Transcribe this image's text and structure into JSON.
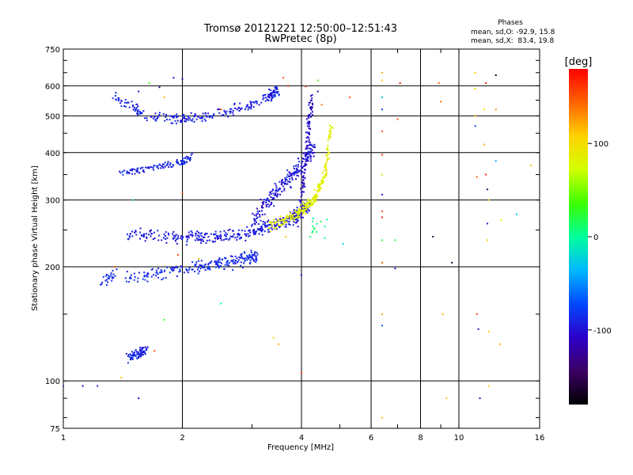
{
  "chart_data": {
    "type": "scatter",
    "title": "Tromsø 20121221 12:50:00–12:51:43",
    "subtitle": "RwPretec (8p)",
    "xlabel": "Frequency [MHz]",
    "ylabel": "Stationary phase Virtual Height [km]",
    "x_scale": "log",
    "y_scale": "log",
    "xlim": [
      1,
      16
    ],
    "ylim": [
      75,
      750
    ],
    "x_ticks": [
      1,
      2,
      4,
      6,
      8,
      10,
      16
    ],
    "y_ticks": [
      75,
      100,
      200,
      300,
      400,
      500,
      600,
      750
    ],
    "grid": true,
    "info": {
      "title": "Phases",
      "line1": "mean, sd,O: -92.9, 15.8",
      "line2": "mean, sd,X:  83.4, 19.8"
    },
    "colorbar": {
      "label": "[deg]",
      "min": -180,
      "max": 180,
      "ticks": [
        100,
        0,
        -100
      ],
      "colors": [
        "#000000",
        "#3c0064",
        "#2c00c8",
        "#0048ff",
        "#00b8ff",
        "#00ff9c",
        "#3cff00",
        "#d2ff00",
        "#ffd200",
        "#ff6400",
        "#ff0000"
      ]
    },
    "traces": [
      {
        "xs": [
          1.45,
          1.62
        ],
        "ys": [
          115,
          120
        ],
        "phase": -92,
        "jitter": 0.045,
        "n": 70
      },
      {
        "xs": [
          1.25,
          1.35
        ],
        "ys": [
          183,
          192
        ],
        "phase": -85,
        "jitter": 0.05,
        "n": 25
      },
      {
        "xs": [
          1.45,
          2.0,
          2.6,
          3.1
        ],
        "ys": [
          188,
          196,
          205,
          215
        ],
        "phase": -88,
        "jitter": 0.06,
        "n": 220
      },
      {
        "xs": [
          1.45,
          2.0,
          2.8,
          3.3,
          3.8,
          4.2
        ],
        "ys": [
          245,
          238,
          243,
          255,
          270,
          290
        ],
        "phase": -95,
        "jitter": 0.055,
        "n": 380
      },
      {
        "xs": [
          3.0,
          3.5,
          4.0,
          4.3
        ],
        "ys": [
          265,
          320,
          370,
          410
        ],
        "phase": -98,
        "jitter": 0.08,
        "n": 220
      },
      {
        "xs": [
          1.4,
          1.7,
          2.0,
          2.1
        ],
        "ys": [
          355,
          365,
          378,
          388
        ],
        "phase": -90,
        "jitter": 0.035,
        "n": 110
      },
      {
        "xs": [
          1.35,
          1.6,
          2.0,
          2.4,
          2.9,
          3.3,
          3.5
        ],
        "ys": [
          560,
          500,
          488,
          502,
          530,
          560,
          585
        ],
        "phase": -92,
        "jitter": 0.045,
        "n": 260
      },
      {
        "xs": [
          3.9,
          4.1,
          4.25
        ],
        "ys": [
          260,
          370,
          560
        ],
        "phase": -105,
        "jitter": 0.03,
        "n": 110
      },
      {
        "xs": [
          3.3,
          3.9,
          4.3,
          4.6,
          4.75
        ],
        "ys": [
          255,
          275,
          300,
          350,
          470
        ],
        "phase": 85,
        "jitter": 0.045,
        "n": 240
      },
      {
        "xs": [
          4.2,
          4.7
        ],
        "ys": [
          250,
          250
        ],
        "phase": 10,
        "jitter": 0.1,
        "n": 15
      }
    ],
    "scatter_points": [
      [
        6.4,
        650,
        120
      ],
      [
        6.4,
        620,
        110
      ],
      [
        6.4,
        560,
        -20
      ],
      [
        6.4,
        520,
        -70
      ],
      [
        6.4,
        455,
        150
      ],
      [
        6.4,
        395,
        160
      ],
      [
        6.4,
        350,
        90
      ],
      [
        6.4,
        310,
        -90
      ],
      [
        6.4,
        280,
        150
      ],
      [
        6.4,
        270,
        170
      ],
      [
        6.4,
        235,
        20
      ],
      [
        6.4,
        205,
        140
      ],
      [
        6.4,
        150,
        130
      ],
      [
        6.4,
        140,
        -60
      ],
      [
        6.4,
        80,
        110
      ],
      [
        7.1,
        610,
        170
      ],
      [
        7.0,
        490,
        150
      ],
      [
        6.9,
        235,
        20
      ],
      [
        6.9,
        198,
        -110
      ],
      [
        8.6,
        240,
        -160
      ],
      [
        8.9,
        610,
        150
      ],
      [
        9.0,
        545,
        140
      ],
      [
        9.1,
        150,
        120
      ],
      [
        9.3,
        90,
        110
      ],
      [
        9.6,
        205,
        -160
      ],
      [
        11.0,
        650,
        110
      ],
      [
        11.0,
        590,
        100
      ],
      [
        11.0,
        500,
        120
      ],
      [
        11.0,
        470,
        -80
      ],
      [
        11.1,
        345,
        150
      ],
      [
        11.1,
        150,
        160
      ],
      [
        11.2,
        137,
        -120
      ],
      [
        11.3,
        90,
        -110
      ],
      [
        11.7,
        610,
        170
      ],
      [
        11.6,
        520,
        100
      ],
      [
        11.6,
        420,
        120
      ],
      [
        11.7,
        350,
        170
      ],
      [
        11.8,
        320,
        -140
      ],
      [
        11.9,
        300,
        110
      ],
      [
        11.8,
        260,
        -100
      ],
      [
        11.8,
        235,
        110
      ],
      [
        11.9,
        135,
        110
      ],
      [
        11.9,
        97,
        110
      ],
      [
        12.4,
        640,
        -170
      ],
      [
        12.4,
        520,
        130
      ],
      [
        12.4,
        380,
        -40
      ],
      [
        12.8,
        265,
        80
      ],
      [
        12.7,
        125,
        120
      ],
      [
        14.0,
        275,
        -20
      ],
      [
        15.2,
        370,
        110
      ],
      [
        1.0,
        97,
        -110
      ],
      [
        1.12,
        97,
        -100
      ],
      [
        1.22,
        97,
        -90
      ],
      [
        1.4,
        102,
        110
      ],
      [
        1.55,
        90,
        -110
      ],
      [
        1.7,
        120,
        150
      ],
      [
        1.75,
        595,
        -130
      ],
      [
        1.65,
        610,
        40
      ],
      [
        1.9,
        630,
        -110
      ],
      [
        2.0,
        625,
        -100
      ],
      [
        1.95,
        215,
        150
      ],
      [
        2.2,
        210,
        120
      ],
      [
        2.5,
        160,
        0
      ],
      [
        2.0,
        312,
        150
      ],
      [
        1.5,
        300,
        -20
      ],
      [
        3.4,
        130,
        110
      ],
      [
        3.5,
        125,
        120
      ],
      [
        3.65,
        240,
        110
      ],
      [
        4.0,
        105,
        160
      ],
      [
        4.0,
        190,
        -110
      ],
      [
        4.4,
        620,
        40
      ],
      [
        4.4,
        580,
        -120
      ],
      [
        4.1,
        598,
        170
      ],
      [
        4.5,
        535,
        140
      ],
      [
        5.1,
        230,
        -20
      ],
      [
        5.3,
        560,
        150
      ],
      [
        3.6,
        630,
        150
      ],
      [
        3.7,
        600,
        170
      ],
      [
        1.8,
        560,
        120
      ],
      [
        1.55,
        580,
        -100
      ],
      [
        1.35,
        200,
        150
      ],
      [
        1.8,
        145,
        30
      ],
      [
        2.5,
        520,
        160
      ]
    ]
  }
}
